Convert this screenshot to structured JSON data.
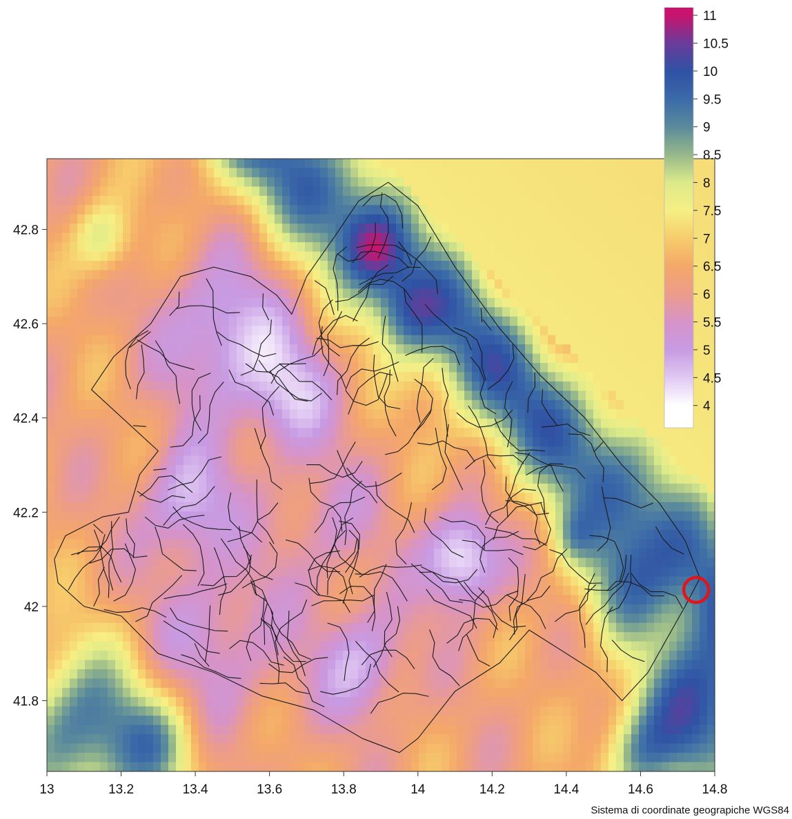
{
  "map": {
    "kind": "gridded raster with municipal boundary overlay",
    "x_ticks": [
      "13",
      "13.2",
      "13.4",
      "13.6",
      "13.8",
      "14",
      "14.2",
      "14.4",
      "14.6",
      "14.8"
    ],
    "y_ticks": [
      "42.8",
      "42.6",
      "42.4",
      "42.2",
      "42",
      "41.8"
    ],
    "x_range": [
      13,
      14.8
    ],
    "y_range": [
      41.65,
      42.95
    ],
    "marker": {
      "lon": 14.75,
      "lat": 42.035,
      "color": "#e0151b",
      "icon": "circle-marker-icon"
    }
  },
  "colorbar": {
    "labels": [
      "11",
      "10.5",
      "10",
      "9.5",
      "9",
      "8.5",
      "8",
      "7.5",
      "7",
      "6.5",
      "6",
      "5.5",
      "5",
      "4.5",
      "4"
    ],
    "values": [
      11,
      10.5,
      10,
      9.5,
      9,
      8.5,
      8,
      7.5,
      7,
      6.5,
      6,
      5.5,
      5,
      4.5,
      4
    ],
    "colors": [
      "#c8146e",
      "#6a3b9a",
      "#2f52a4",
      "#3b6aa8",
      "#5a8a9c",
      "#96b88a",
      "#dcea8a",
      "#f6ef84",
      "#f7cc6c",
      "#f4a868",
      "#ec9c8a",
      "#d693c8",
      "#c79be3",
      "#e0c8f2",
      "#ffffff"
    ]
  },
  "crs_label": "Sistema di coordinate geograpiche WGS84"
}
